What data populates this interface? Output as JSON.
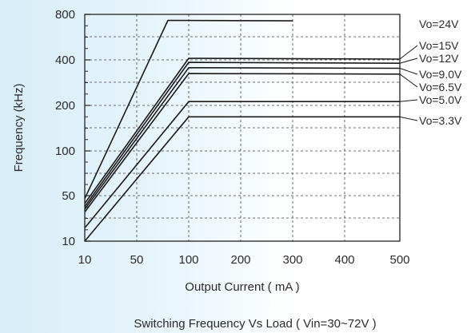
{
  "chart_data": {
    "type": "line",
    "title": "Switching Frequency  Vs Load ( Vin=30~72V )",
    "xlabel": "Output Current ( mA )",
    "ylabel": "Frequency (kHz)",
    "x_ticks": [
      10,
      50,
      100,
      200,
      300,
      400,
      500
    ],
    "x_tick_labels": [
      "10",
      "50",
      "100",
      "200",
      "300",
      "400",
      "500"
    ],
    "y_ticks": [
      10,
      50,
      100,
      200,
      400,
      800
    ],
    "y_tick_labels": [
      "10",
      "50",
      "100",
      "200",
      "400",
      "800"
    ],
    "xlim": [
      10,
      500
    ],
    "ylim": [
      10,
      800
    ],
    "grid": true,
    "series": [
      {
        "name": "Vo=24V",
        "x": [
          10,
          80,
          300
        ],
        "y": [
          45,
          730,
          725
        ]
      },
      {
        "name": "Vo=15V",
        "x": [
          10,
          100,
          500
        ],
        "y": [
          38,
          410,
          405
        ]
      },
      {
        "name": "Vo=12V",
        "x": [
          10,
          100,
          500
        ],
        "y": [
          34,
          385,
          380
        ]
      },
      {
        "name": "Vo=9.0V",
        "x": [
          10,
          100,
          500
        ],
        "y": [
          31,
          355,
          352
        ]
      },
      {
        "name": "Vo=6.5V",
        "x": [
          10,
          100,
          500
        ],
        "y": [
          28,
          325,
          322
        ]
      },
      {
        "name": "Vo=5.0V",
        "x": [
          10,
          100,
          500
        ],
        "y": [
          16,
          212,
          212
        ]
      },
      {
        "name": "Vo=3.3V",
        "x": [
          10,
          100,
          500
        ],
        "y": [
          10,
          168,
          168
        ]
      }
    ]
  }
}
